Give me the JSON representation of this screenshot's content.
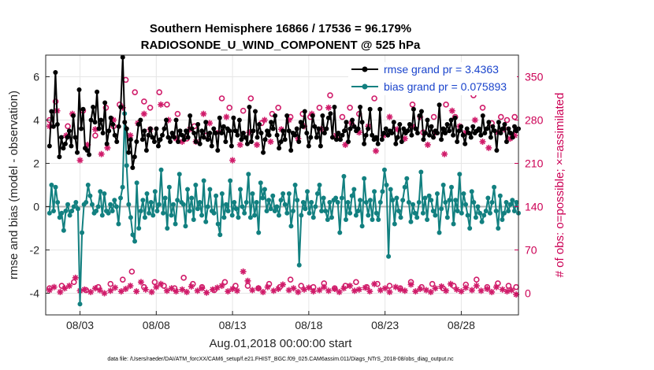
{
  "chart_data": {
    "type": "line",
    "title_line1": "Southern Hemisphere 16866 / 17536 = 96.179%",
    "title_line2": "RADIOSONDE_U_WIND_COMPONENT @ 525 hPa",
    "ylabel": "rmse and bias (model - observation)",
    "ylabel_right": "# of obs: o=possible; ×=assimilated",
    "xlabel": "Aug.01,2018 00:00:00 start",
    "footer": "data file: /Users/raeder/DAI/ATM_forcXX/CAM6_setup/f.e21.FHIST_BGC.f09_025.CAM6assim.011/Diags_NTrS_2018-08/obs_diag_output.nc",
    "xlim": [
      0.75,
      31.75
    ],
    "ylim": [
      -5,
      7
    ],
    "ylim_right": [
      -35,
      385
    ],
    "yticks": [
      -4,
      -2,
      0,
      2,
      4,
      6
    ],
    "yticks_right": [
      0,
      70,
      140,
      210,
      280,
      350
    ],
    "xticks": [
      3,
      8,
      13,
      18,
      23,
      28
    ],
    "xtick_labels": [
      "08/03",
      "08/08",
      "08/13",
      "08/18",
      "08/23",
      "08/28"
    ],
    "series": [
      {
        "name": "rmse",
        "legend": "rmse grand pr = 3.4363",
        "color": "#000000",
        "marker": "star",
        "values": [
          2.8,
          4.4,
          3.7,
          6.2,
          3.8,
          2.3,
          3.2,
          2.7,
          2.9,
          3.2,
          3.5,
          2.8,
          4.2,
          3.2,
          2.5,
          5.4,
          3.6,
          4.5,
          2.7,
          2.6,
          2.4,
          4.0,
          4.6,
          3.9,
          5.3,
          3.6,
          4.0,
          3.4,
          4.8,
          2.9,
          3.5,
          4.1,
          3.8,
          3.3,
          3.0,
          3.7,
          4.6,
          6.9,
          3.9,
          3.6,
          2.5,
          3.1,
          1.8,
          2.3,
          3.0,
          3.8,
          4.0,
          3.1,
          3.5,
          2.6,
          3.3,
          3.6,
          3.2,
          3.0,
          3.6,
          2.8,
          3.1,
          3.3,
          3.6,
          4.0,
          3.2,
          3.0,
          3.4,
          3.2,
          4.0,
          3.0,
          3.5,
          3.3,
          3.1,
          3.5,
          3.2,
          4.2,
          3.6,
          3.4,
          3.0,
          3.8,
          2.9,
          3.5,
          3.2,
          3.9,
          3.1,
          3.4,
          2.8,
          3.6,
          3.4,
          2.6,
          4.1,
          3.4,
          3.7,
          3.0,
          3.6,
          3.5,
          2.8,
          4.1,
          3.5,
          3.3,
          4.0,
          3.1,
          3.4,
          3.2,
          2.9,
          4.6,
          3.0,
          3.5,
          4.4,
          3.2,
          3.8,
          3.4,
          2.5,
          3.1,
          3.5,
          3.3,
          3.9,
          3.6,
          4.2,
          3.3,
          2.7,
          3.0,
          3.5,
          3.1,
          4.2,
          3.5,
          2.6,
          3.4,
          3.3,
          3.6,
          3.0,
          3.9,
          3.7,
          4.4,
          3.4,
          2.8,
          3.2,
          4.2,
          3.7,
          3.2,
          3.6,
          2.8,
          4.2,
          3.4,
          3.6,
          4.1,
          4.3,
          3.2,
          4.6,
          3.1,
          3.4,
          3.1,
          3.3,
          3.5,
          3.9,
          3.0,
          3.6,
          4.0,
          3.7,
          3.5,
          3.6,
          4.6,
          3.9,
          2.9,
          3.3,
          3.6,
          4.5,
          3.3,
          3.1,
          3.2,
          2.9,
          4.5,
          3.1,
          3.4,
          3.6,
          3.3,
          3.5,
          3.4,
          3.9,
          2.9,
          3.2,
          3.8,
          3.0,
          3.6,
          3.4,
          3.5,
          3.8,
          3.3,
          4.5,
          3.6,
          3.4,
          4.2,
          4.4,
          3.1,
          3.4,
          4.0,
          3.3,
          3.7,
          3.2,
          3.5,
          3.4,
          4.7,
          3.1,
          3.6,
          3.4,
          3.8,
          3.5,
          4.0,
          3.3,
          4.1,
          3.0,
          3.5,
          3.7,
          3.3,
          2.9,
          3.6,
          3.4,
          3.2,
          3.7,
          3.4,
          3.5,
          3.6,
          3.3,
          4.2,
          3.4,
          3.6,
          3.9,
          3.2,
          3.7,
          3.5,
          2.6,
          3.9,
          3.4,
          3.6,
          3.8,
          3.0,
          3.6,
          3.4,
          3.2,
          3.7,
          3.5,
          3.6
        ]
      },
      {
        "name": "bias",
        "legend": "bias grand pr = 0.075893",
        "color": "#128080",
        "marker": "circle",
        "values": [
          -0.3,
          1.0,
          -0.2,
          0.9,
          0.2,
          -0.5,
          -0.3,
          -1.1,
          -0.2,
          0.1,
          -0.4,
          -0.2,
          0.0,
          0.2,
          -0.1,
          -4.5,
          -1.2,
          0.1,
          0.2,
          1.0,
          0.5,
          0.1,
          -0.3,
          -0.2,
          0.0,
          0.7,
          -0.4,
          0.6,
          -0.2,
          -0.3,
          0.1,
          -0.2,
          0.3,
          0.0,
          -0.8,
          0.4,
          0.9,
          4.3,
          1.9,
          0.1,
          -0.5,
          -1.3,
          -1.6,
          1.1,
          -1.0,
          -0.2,
          0.3,
          -0.5,
          0.6,
          -0.3,
          0.2,
          -0.4,
          0.7,
          -0.2,
          0.1,
          1.7,
          -0.3,
          0.4,
          -1.0,
          0.9,
          -0.4,
          0.1,
          -0.8,
          0.3,
          1.5,
          0.2,
          0.1,
          -0.9,
          0.8,
          -0.2,
          0.4,
          -0.6,
          1.0,
          -0.1,
          0.2,
          -0.4,
          1.2,
          -0.7,
          0.0,
          0.8,
          -0.2,
          -0.3,
          0.5,
          -0.8,
          -1.3,
          0.6,
          -0.5,
          0.1,
          -0.2,
          1.2,
          -0.4,
          0.2,
          -0.1,
          -0.5,
          0.8,
          0.0,
          -0.3,
          0.2,
          1.5,
          -0.5,
          0.6,
          -0.4,
          0.2,
          -1.2,
          1.1,
          0.4,
          0.8,
          -0.2,
          0.3,
          -0.1,
          0.5,
          -0.2,
          0.0,
          -0.4,
          0.3,
          0.6,
          0.1,
          -0.3,
          0.6,
          -0.9,
          -0.2,
          1.0,
          0.3,
          -2.7,
          -0.4,
          0.2,
          -0.1,
          0.7,
          -0.3,
          0.2,
          -0.5,
          0.0,
          0.6,
          1.0,
          -0.2,
          0.4,
          -0.2,
          -0.6,
          0.2,
          -0.5,
          0.3,
          0.4,
          0.2,
          -1.2,
          0.4,
          1.4,
          -0.6,
          0.2,
          -0.3,
          0.5,
          0.8,
          -0.4,
          -0.2,
          0.3,
          -0.9,
          1.3,
          0.2,
          -0.4,
          0.3,
          -0.6,
          0.7,
          -0.3,
          -0.6,
          0.2,
          0.7,
          1.7,
          1.0,
          -2.3,
          0.8,
          0.3,
          -0.8,
          0.4,
          -0.2,
          -0.5,
          0.3,
          0.9,
          1.3,
          0.2,
          -0.7,
          0.1,
          -0.3,
          -0.5,
          0.2,
          1.6,
          -0.3,
          0.4,
          -0.6,
          0.5,
          0.3,
          -0.2,
          -0.4,
          0.6,
          -1.2,
          -0.1,
          1.0,
          0.2,
          -0.5,
          0.3,
          0.9,
          -0.8,
          0.3,
          -0.2,
          1.5,
          -0.3,
          0.6,
          0.1,
          -0.4,
          -1.0,
          0.7,
          0.2,
          -0.5,
          0.0,
          -0.3,
          -0.7,
          -0.4,
          -0.2,
          0.4,
          -0.3,
          0.2,
          0.9,
          -0.2,
          -1.0,
          0.5,
          -0.6,
          -0.3,
          0.2,
          -0.2,
          0.1,
          0.3,
          -0.2,
          0.2,
          -0.3
        ]
      }
    ],
    "obs_possible": {
      "x": [
        1.0,
        1.4,
        2.2,
        3.2,
        4.0,
        4.7,
        5.2,
        5.6,
        6.0,
        6.6,
        7.2,
        7.6,
        8.2,
        8.7,
        9.4,
        10.0,
        10.5,
        11.3,
        12.3,
        12.8,
        13.7,
        14.2,
        14.9,
        15.6,
        16.0,
        16.8,
        17.6,
        18.1,
        18.7,
        19.4,
        20.2,
        20.7,
        21.3,
        22.3,
        22.8,
        23.4,
        24.1,
        24.8,
        25.5,
        26.2,
        27.0,
        27.6,
        28.2,
        28.8,
        29.4,
        30.0,
        30.6,
        31.0,
        31.5
      ],
      "values": [
        280,
        310,
        270,
        295,
        255,
        300,
        270,
        305,
        345,
        325,
        310,
        300,
        325,
        305,
        290,
        250,
        270,
        255,
        315,
        300,
        295,
        315,
        275,
        290,
        300,
        285,
        290,
        285,
        300,
        320,
        285,
        300,
        290,
        315,
        340,
        325,
        345,
        305,
        260,
        285,
        305,
        285,
        330,
        320,
        300,
        275,
        285,
        280,
        285
      ]
    },
    "obs_assimilated": {
      "x": [
        1.0,
        1.5,
        2.1,
        2.5,
        3.0,
        3.5,
        4.0,
        4.4,
        4.8,
        5.2,
        5.8,
        6.3,
        6.8,
        7.2,
        7.6,
        8.3,
        8.8,
        9.3,
        9.7,
        10.2,
        10.6,
        11.1,
        11.5,
        12.1,
        12.6,
        13.0,
        13.5,
        14.1,
        14.6,
        15.1,
        15.5,
        16.2,
        16.7,
        17.3,
        17.7,
        18.2,
        18.8,
        19.3,
        19.8,
        20.4,
        20.8,
        21.3,
        21.9,
        22.4,
        22.9,
        23.3,
        23.8,
        24.3,
        24.8,
        25.3,
        25.8,
        26.3,
        26.9,
        27.4,
        27.9,
        28.3,
        28.9,
        29.4,
        29.8,
        30.4,
        30.8,
        31.2,
        31.5
      ],
      "values": [
        270,
        295,
        255,
        290,
        215,
        240,
        265,
        225,
        235,
        280,
        300,
        255,
        275,
        290,
        265,
        305,
        280,
        250,
        245,
        265,
        245,
        290,
        275,
        260,
        285,
        215,
        240,
        260,
        240,
        280,
        245,
        265,
        280,
        250,
        270,
        290,
        265,
        300,
        255,
        240,
        275,
        260,
        270,
        230,
        255,
        285,
        265,
        250,
        270,
        285,
        240,
        260,
        225,
        295,
        270,
        260,
        280,
        245,
        235,
        260,
        265,
        250,
        255
      ]
    },
    "obs_possible_low": {
      "x": [
        1.0,
        1.8,
        2.6,
        3.4,
        4.2,
        5.0,
        5.8,
        6.4,
        7.2,
        7.9,
        8.5,
        9.2,
        9.8,
        10.4,
        11.0,
        11.8,
        12.5,
        13.2,
        14.0,
        14.7,
        15.4,
        16.1,
        16.8,
        17.5,
        18.3,
        19.0,
        19.7,
        20.4,
        21.1,
        21.8,
        22.5,
        23.3,
        24.0,
        24.7,
        25.4,
        26.1,
        26.8,
        27.5,
        28.3,
        29.0,
        29.7,
        30.4,
        31.1,
        31.6
      ],
      "values": [
        8,
        12,
        18,
        5,
        10,
        15,
        22,
        35,
        10,
        18,
        12,
        8,
        25,
        15,
        10,
        5,
        18,
        12,
        12,
        8,
        15,
        10,
        22,
        12,
        10,
        16,
        8,
        12,
        18,
        10,
        15,
        12,
        8,
        18,
        10,
        15,
        8,
        12,
        14,
        22,
        10,
        16,
        12,
        10
      ]
    },
    "obs_assimilated_low": {
      "x": [
        1.0,
        1.3,
        1.7,
        2.0,
        2.3,
        2.7,
        3.0,
        3.3,
        3.7,
        4.0,
        4.3,
        4.6,
        5.0,
        5.3,
        5.7,
        6.0,
        6.3,
        6.7,
        7.0,
        7.3,
        7.7,
        8.0,
        8.3,
        8.7,
        9.0,
        9.3,
        9.7,
        10.0,
        10.3,
        10.7,
        11.0,
        11.3,
        11.7,
        12.0,
        12.3,
        12.7,
        13.0,
        13.3,
        13.7,
        14.0,
        14.3,
        14.7,
        15.0,
        15.3,
        15.7,
        16.0,
        16.3,
        16.7,
        17.0,
        17.3,
        17.7,
        18.0,
        18.3,
        18.7,
        19.0,
        19.3,
        19.7,
        20.0,
        20.3,
        20.7,
        21.0,
        21.3,
        21.7,
        22.0,
        22.3,
        22.7,
        23.0,
        23.3,
        23.7,
        24.0,
        24.3,
        24.7,
        25.0,
        25.3,
        25.7,
        26.0,
        26.3,
        26.7,
        27.0,
        27.3,
        27.7,
        28.0,
        28.3,
        28.7,
        29.0,
        29.3,
        29.7,
        30.0,
        30.3,
        30.7,
        31.0,
        31.3,
        31.6
      ],
      "values": [
        5,
        10,
        2,
        8,
        12,
        25,
        4,
        6,
        2,
        8,
        5,
        0,
        4,
        9,
        3,
        7,
        12,
        3,
        18,
        6,
        2,
        10,
        15,
        4,
        8,
        3,
        6,
        2,
        11,
        4,
        8,
        1,
        6,
        9,
        12,
        3,
        7,
        4,
        35,
        20,
        5,
        8,
        2,
        10,
        4,
        7,
        14,
        5,
        8,
        2,
        6,
        9,
        3,
        5,
        10,
        4,
        7,
        2,
        8,
        12,
        4,
        6,
        9,
        3,
        15,
        5,
        8,
        2,
        10,
        6,
        4,
        14,
        3,
        7,
        5,
        2,
        8,
        11,
        4,
        15,
        6,
        3,
        9,
        5,
        12,
        4,
        7,
        2,
        10,
        6,
        3,
        5,
        -2
      ]
    }
  }
}
